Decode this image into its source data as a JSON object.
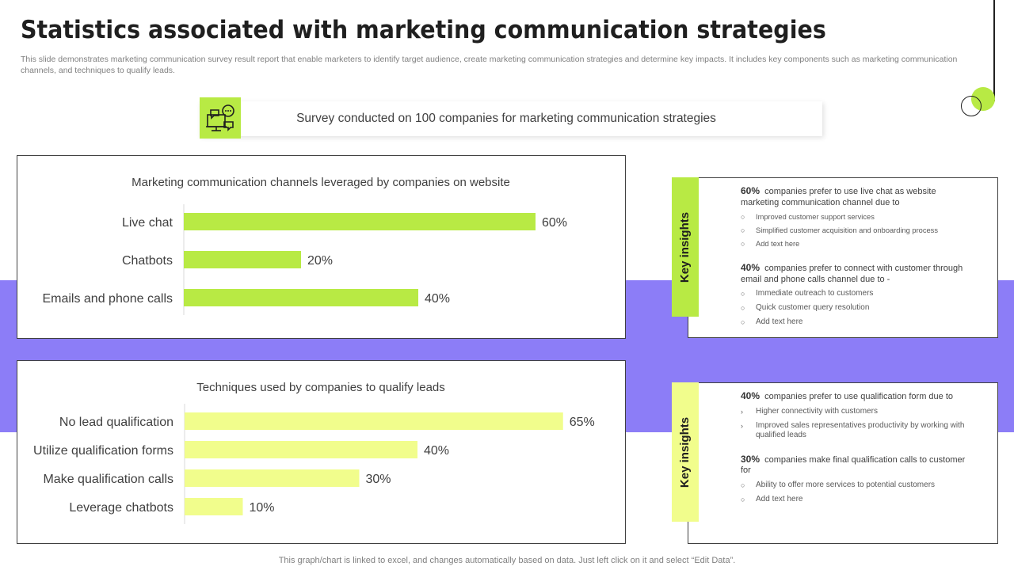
{
  "title": "Statistics associated with marketing communication strategies",
  "subtitle": "This slide demonstrates marketing communication survey result report that enable marketers to identify target audience, create marketing communication strategies and determine key impacts. It includes key components such as marketing communication channels, and techniques to qualify leads.",
  "survey_banner": {
    "text": "Survey conducted on 100 companies for marketing communication strategies",
    "icon": "chat-presentation-icon"
  },
  "colors": {
    "accent_green": "#b8ea44",
    "light_yellow": "#f1fd8c",
    "purple_band": "#8c7df7"
  },
  "chart_data": [
    {
      "type": "bar",
      "orientation": "horizontal",
      "title": "Marketing communication channels leveraged by companies on website",
      "categories": [
        "Live chat",
        "Chatbots",
        "Emails and phone calls"
      ],
      "values": [
        60,
        20,
        40
      ],
      "value_labels": [
        "60%",
        "20%",
        "40%"
      ],
      "unit": "%",
      "xlim": [
        0,
        100
      ],
      "color": "#b8ea44",
      "grid": false,
      "legend": "none"
    },
    {
      "type": "bar",
      "orientation": "horizontal",
      "title": "Techniques used by companies to qualify leads",
      "categories": [
        "No lead qualification",
        "Utilize qualification forms",
        "Make qualification calls",
        "Leverage chatbots"
      ],
      "values": [
        65,
        40,
        30,
        10
      ],
      "value_labels": [
        "65%",
        "40%",
        "30%",
        "10%"
      ],
      "unit": "%",
      "xlim": [
        0,
        100
      ],
      "color": "#f1fd8c",
      "grid": false,
      "legend": "none"
    }
  ],
  "insights": [
    {
      "tab_label": "Key insights",
      "blocks": [
        {
          "pct": "60%",
          "text": "companies prefer to use live chat as website marketing communication channel due to",
          "bullet": "○",
          "points": [
            "Improved customer support services",
            "Simplified customer acquisition and onboarding process",
            "Add text here"
          ]
        },
        {
          "pct": "40%",
          "text": "companies prefer to connect with customer through email and phone calls channel due to -",
          "bullet": "○",
          "points": [
            "Immediate  outreach to customers",
            "Quick customer query resolution",
            "Add text here"
          ]
        }
      ]
    },
    {
      "tab_label": "Key insights",
      "blocks": [
        {
          "pct": "40%",
          "text": "companies prefer to use qualification form due to",
          "bullet": "›",
          "points": [
            "Higher connectivity with customers",
            "Improved sales representatives productivity by working with qualified leads"
          ]
        },
        {
          "pct": "30%",
          "text": "companies make final qualification calls to customer for",
          "bullet": "○",
          "points": [
            "Ability to offer more services to potential customers",
            "Add text here"
          ]
        }
      ]
    }
  ],
  "footer": "This graph/chart is linked to excel,  and changes automatically based on data. Just left click on it and select “Edit Data”."
}
